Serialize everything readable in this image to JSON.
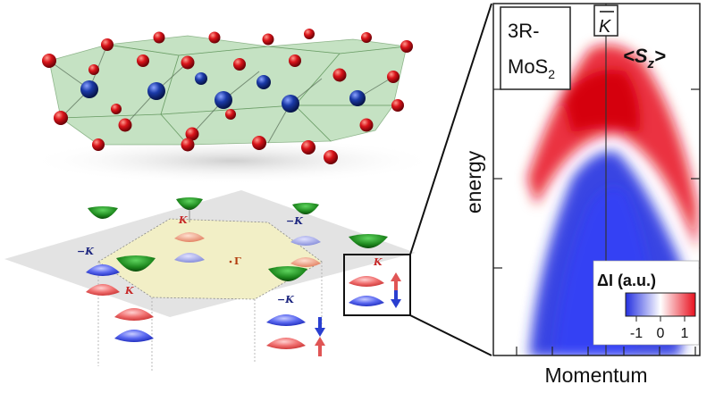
{
  "crystal": {
    "atoms": [
      {
        "element": "S",
        "color": "#d9141a"
      },
      {
        "element": "Mo",
        "color": "#1b3aa8"
      }
    ],
    "prism_color": "#7fbf7a"
  },
  "brillouin_zone": {
    "gamma_label": "Γ",
    "k_label": "K",
    "minus_k_label": "−K",
    "spin_up_color": "#e05555",
    "spin_down_color": "#2a3fd0",
    "band_green": "#1f8a1f"
  },
  "arpes": {
    "sample_label_line1": "3R-",
    "sample_label_line2": "MoS",
    "sample_label_sub": "2",
    "k_point_label": "K",
    "observable_label": "<S",
    "observable_sub": "z",
    "observable_close": ">",
    "ylabel": "energy",
    "xlabel": "Momentum",
    "colorbar_title": "ΔI (a.u.)",
    "colorbar_ticks": [
      "-1",
      "0",
      "1"
    ],
    "colors": {
      "positive": "#e8101e",
      "negative": "#2430e0",
      "zero": "#ffffff"
    }
  }
}
